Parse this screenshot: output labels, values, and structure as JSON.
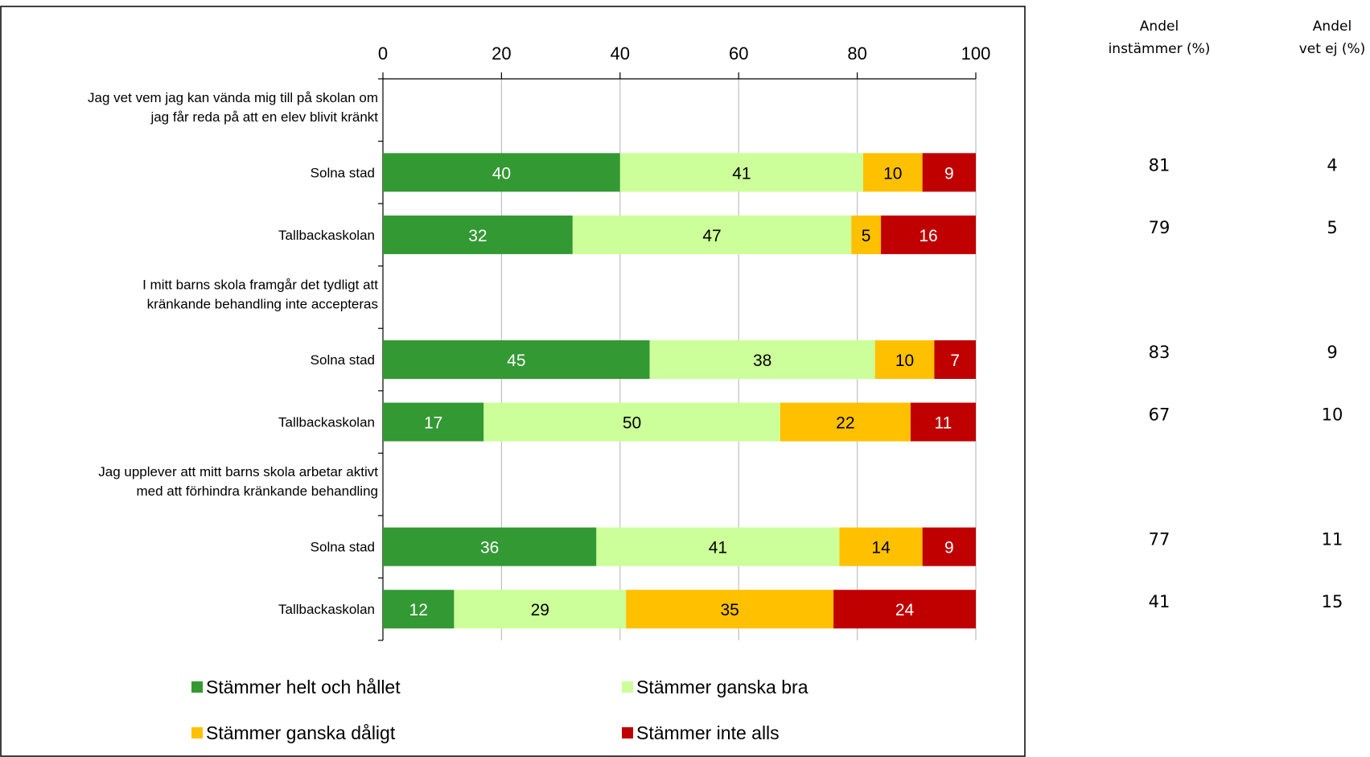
{
  "chart_data": {
    "type": "bar",
    "orientation": "horizontal",
    "stacked": true,
    "xlim": [
      0,
      100
    ],
    "xticks": [
      0,
      20,
      40,
      60,
      80,
      100
    ],
    "grid": true,
    "legend_position": "bottom",
    "colors": [
      "#339933",
      "#ccff99",
      "#ffc000",
      "#c00000"
    ],
    "series": [
      {
        "name": "Stämmer helt och hållet",
        "color": "#339933"
      },
      {
        "name": "Stämmer ganska bra",
        "color": "#ccff99"
      },
      {
        "name": "Stämmer ganska dåligt",
        "color": "#ffc000"
      },
      {
        "name": "Stämmer inte alls",
        "color": "#c00000"
      }
    ],
    "groups": [
      {
        "title": "Jag vet vem jag kan vända mig till på skolan om jag får reda på att en elev blivit kränkt",
        "title_lines": [
          "Jag vet vem jag kan vända mig till på skolan om",
          "jag får reda på att en elev blivit kränkt"
        ],
        "rows": [
          {
            "label": "Solna stad",
            "values": [
              40,
              41,
              10,
              9
            ],
            "andel_instammer": "81",
            "andel_vet_ej": "4"
          },
          {
            "label": "Tallbackaskolan",
            "values": [
              32,
              47,
              5,
              16
            ],
            "andel_instammer": "79",
            "andel_vet_ej": "5"
          }
        ]
      },
      {
        "title": "I mitt barns skola framgår det tydligt att kränkande behandling inte accepteras",
        "title_lines": [
          "I mitt barns skola framgår det tydligt att",
          "kränkande behandling inte accepteras"
        ],
        "rows": [
          {
            "label": "Solna stad",
            "values": [
              45,
              38,
              10,
              7
            ],
            "andel_instammer": "83",
            "andel_vet_ej": "9"
          },
          {
            "label": "Tallbackaskolan",
            "values": [
              17,
              50,
              22,
              11
            ],
            "andel_instammer": "67",
            "andel_vet_ej": "10"
          }
        ]
      },
      {
        "title": "Jag upplever att mitt barns skola arbetar aktivt med att förhindra kränkande behandling",
        "title_lines": [
          "Jag upplever att mitt barns skola arbetar aktivt",
          "med att förhindra kränkande behandling"
        ],
        "rows": [
          {
            "label": "Solna stad",
            "values": [
              36,
              41,
              14,
              9
            ],
            "andel_instammer": "77",
            "andel_vet_ej": "11"
          },
          {
            "label": "Tallbackaskolan",
            "values": [
              12,
              29,
              35,
              24
            ],
            "andel_instammer": "41",
            "andel_vet_ej": "15"
          }
        ]
      }
    ],
    "side_columns": [
      {
        "header_lines": [
          "Andel",
          "instämmer (%)"
        ]
      },
      {
        "header_lines": [
          "Andel",
          "vet ej (%)"
        ]
      }
    ]
  }
}
